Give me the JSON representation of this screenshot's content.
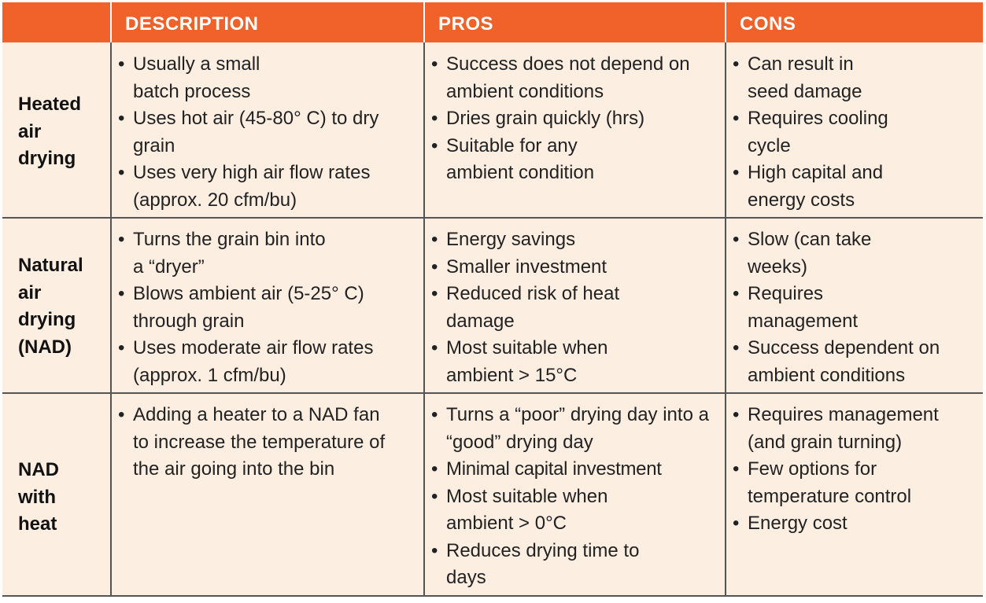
{
  "header": {
    "description": "DESCRIPTION",
    "pros": "PROS",
    "cons": "CONS"
  },
  "rows": [
    {
      "method": [
        "Heated",
        "air",
        "drying"
      ],
      "description": [
        "Usually a small batch process",
        "Uses hot air (45-80° C) to dry grain",
        "Uses very high air flow rates (approx. 20 cfm/bu)"
      ],
      "pros": [
        "Success does not depend on ambient conditions",
        "Dries grain quickly (hrs)",
        "Suitable for any ambient condition"
      ],
      "cons": [
        "Can result in seed damage",
        "Requires cooling cycle",
        "High capital and energy costs"
      ]
    },
    {
      "method": [
        "Natural",
        "air",
        "drying",
        "(NAD)"
      ],
      "description": [
        "Turns the grain bin into a “dryer”",
        "Blows ambient air (5-25° C) through grain",
        "Uses moderate air flow rates (approx. 1 cfm/bu)"
      ],
      "pros": [
        "Energy savings",
        "Smaller investment",
        "Reduced risk of heat damage",
        "Most suitable when ambient > 15°C"
      ],
      "cons": [
        "Slow (can take weeks)",
        "Requires management",
        "Success dependent on ambient conditions"
      ]
    },
    {
      "method": [
        "NAD",
        "with",
        "heat"
      ],
      "description": [
        "Adding a heater to a NAD fan to increase the temperature of the air going into the bin"
      ],
      "pros": [
        "Turns a “poor” drying day into a “good” drying day",
        "Minimal capital investment",
        "Most suitable when ambient > 0°C",
        "Reduces drying time to days"
      ],
      "cons": [
        "Requires management (and grain turning)",
        "Few options for temperature control",
        "Energy cost"
      ]
    }
  ]
}
